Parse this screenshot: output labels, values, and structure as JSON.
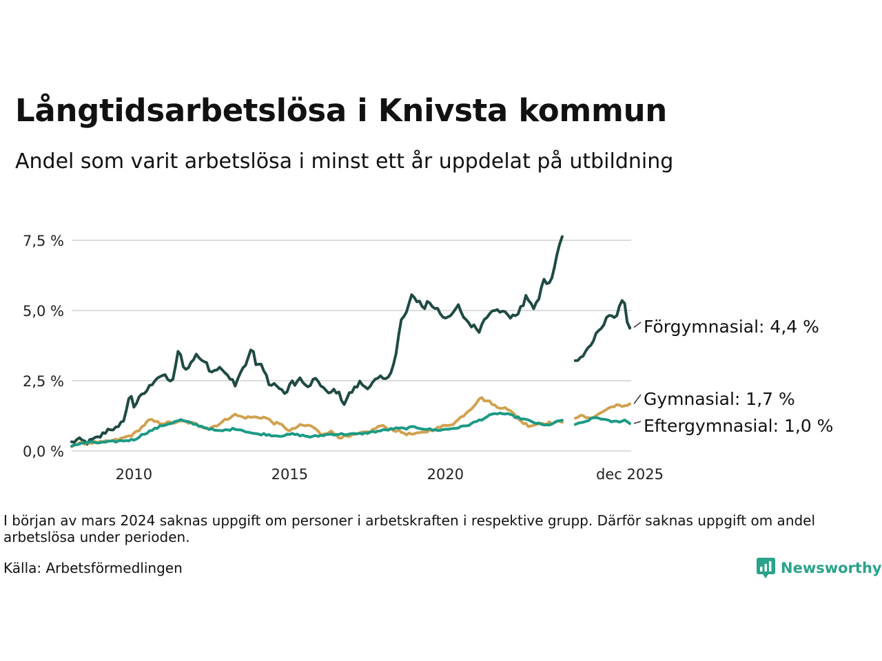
{
  "title": "Långtidsarbetslösa i Knivsta kommun",
  "subtitle": "Andel som varit arbetslösa i minst ett år uppdelat på utbildning",
  "note": "I början av mars 2024 saknas uppgift om personer i arbetskraften i respektive grupp. Därför saknas uppgift om andel arbetslösa under perioden.",
  "source": "Källa: Arbetsförmedlingen",
  "logo_text": "Newsworthy",
  "chart_data": {
    "type": "line",
    "title": "Långtidsarbetslösa i Knivsta kommun",
    "xlabel": "",
    "ylabel": "",
    "xlim": [
      2008.0,
      2025.92
    ],
    "ylim": [
      0,
      8.8
    ],
    "y_ticks": [
      0,
      2.5,
      5.0,
      7.5
    ],
    "y_tick_labels": [
      "0,0 %",
      "2,5 %",
      "5,0 %",
      "7,5 %"
    ],
    "x_ticks": [
      2010,
      2015,
      2020,
      2025.92
    ],
    "x_tick_labels": [
      "2010",
      "2015",
      "2020",
      "dec 2025"
    ],
    "gap": [
      2023.75,
      2024.17
    ],
    "grid": true,
    "series": [
      {
        "name": "Förgymnasial",
        "label": "Förgymnasial: 4,4 %",
        "color": "#1f4a43",
        "points": [
          [
            2008.0,
            0.3
          ],
          [
            2008.2,
            0.4
          ],
          [
            2008.5,
            0.3
          ],
          [
            2008.9,
            0.5
          ],
          [
            2009.2,
            0.8
          ],
          [
            2009.5,
            0.8
          ],
          [
            2009.7,
            1.2
          ],
          [
            2009.85,
            1.9
          ],
          [
            2009.95,
            2.0
          ],
          [
            2010.0,
            1.6
          ],
          [
            2010.2,
            1.9
          ],
          [
            2010.45,
            2.2
          ],
          [
            2010.7,
            2.6
          ],
          [
            2010.9,
            2.7
          ],
          [
            2011.05,
            2.6
          ],
          [
            2011.2,
            2.4
          ],
          [
            2011.3,
            2.8
          ],
          [
            2011.4,
            3.5
          ],
          [
            2011.55,
            3.3
          ],
          [
            2011.6,
            2.9
          ],
          [
            2011.75,
            2.9
          ],
          [
            2011.9,
            3.3
          ],
          [
            2012.05,
            3.5
          ],
          [
            2012.15,
            3.2
          ],
          [
            2012.3,
            3.2
          ],
          [
            2012.45,
            2.8
          ],
          [
            2012.6,
            2.9
          ],
          [
            2012.9,
            2.9
          ],
          [
            2013.1,
            2.6
          ],
          [
            2013.25,
            2.4
          ],
          [
            2013.45,
            2.9
          ],
          [
            2013.65,
            3.2
          ],
          [
            2013.8,
            3.8
          ],
          [
            2013.9,
            3.0
          ],
          [
            2014.05,
            3.1
          ],
          [
            2014.2,
            2.9
          ],
          [
            2014.35,
            2.3
          ],
          [
            2014.55,
            2.4
          ],
          [
            2014.75,
            2.1
          ],
          [
            2014.95,
            2.1
          ],
          [
            2015.05,
            2.5
          ],
          [
            2015.2,
            2.4
          ],
          [
            2015.35,
            2.6
          ],
          [
            2015.55,
            2.2
          ],
          [
            2015.75,
            2.5
          ],
          [
            2015.9,
            2.5
          ],
          [
            2016.05,
            2.3
          ],
          [
            2016.25,
            2.0
          ],
          [
            2016.45,
            2.2
          ],
          [
            2016.6,
            2.0
          ],
          [
            2016.75,
            1.7
          ],
          [
            2016.9,
            2.0
          ],
          [
            2017.15,
            2.3
          ],
          [
            2017.3,
            2.5
          ],
          [
            2017.35,
            2.3
          ],
          [
            2017.55,
            2.3
          ],
          [
            2017.75,
            2.5
          ],
          [
            2017.95,
            2.6
          ],
          [
            2018.1,
            2.5
          ],
          [
            2018.3,
            3.0
          ],
          [
            2018.45,
            3.6
          ],
          [
            2018.55,
            4.6
          ],
          [
            2018.7,
            4.8
          ],
          [
            2018.8,
            5.1
          ],
          [
            2018.9,
            5.5
          ],
          [
            2019.05,
            5.4
          ],
          [
            2019.2,
            5.3
          ],
          [
            2019.35,
            5.0
          ],
          [
            2019.45,
            5.5
          ],
          [
            2019.55,
            5.1
          ],
          [
            2019.75,
            5.1
          ],
          [
            2019.9,
            4.8
          ],
          [
            2020.05,
            4.8
          ],
          [
            2020.15,
            4.7
          ],
          [
            2020.25,
            4.9
          ],
          [
            2020.4,
            5.2
          ],
          [
            2020.5,
            4.9
          ],
          [
            2020.65,
            4.7
          ],
          [
            2020.8,
            4.5
          ],
          [
            2020.95,
            4.4
          ],
          [
            2021.1,
            4.3
          ],
          [
            2021.25,
            4.7
          ],
          [
            2021.45,
            5.0
          ],
          [
            2021.55,
            5.1
          ],
          [
            2021.75,
            4.9
          ],
          [
            2021.95,
            5.0
          ],
          [
            2022.1,
            4.7
          ],
          [
            2022.3,
            4.9
          ],
          [
            2022.5,
            5.2
          ],
          [
            2022.6,
            5.5
          ],
          [
            2022.75,
            5.3
          ],
          [
            2022.85,
            5.0
          ],
          [
            2023.05,
            5.6
          ],
          [
            2023.15,
            6.2
          ],
          [
            2023.25,
            5.9
          ],
          [
            2023.45,
            6.2
          ],
          [
            2023.6,
            7.1
          ],
          [
            2023.75,
            7.6
          ]
        ]
      },
      {
        "name": "Gymnasial",
        "label": "Gymnasial: 1,7 %",
        "color": "#d0a14f",
        "points": [
          [
            2008.0,
            0.2
          ],
          [
            2008.5,
            0.3
          ],
          [
            2009.0,
            0.3
          ],
          [
            2009.5,
            0.4
          ],
          [
            2010.0,
            0.6
          ],
          [
            2010.3,
            0.9
          ],
          [
            2010.5,
            1.1
          ],
          [
            2010.8,
            1.0
          ],
          [
            2011.2,
            1.0
          ],
          [
            2011.6,
            1.05
          ],
          [
            2012.0,
            0.95
          ],
          [
            2012.4,
            0.8
          ],
          [
            2012.8,
            1.0
          ],
          [
            2013.2,
            1.3
          ],
          [
            2013.5,
            1.2
          ],
          [
            2013.8,
            1.2
          ],
          [
            2014.2,
            1.2
          ],
          [
            2014.5,
            1.0
          ],
          [
            2014.8,
            0.9
          ],
          [
            2015.0,
            0.7
          ],
          [
            2015.3,
            0.9
          ],
          [
            2015.7,
            0.9
          ],
          [
            2016.0,
            0.6
          ],
          [
            2016.3,
            0.7
          ],
          [
            2016.6,
            0.5
          ],
          [
            2016.9,
            0.5
          ],
          [
            2017.2,
            0.6
          ],
          [
            2017.6,
            0.7
          ],
          [
            2017.9,
            0.9
          ],
          [
            2018.2,
            0.8
          ],
          [
            2018.5,
            0.7
          ],
          [
            2018.8,
            0.6
          ],
          [
            2019.1,
            0.6
          ],
          [
            2019.4,
            0.7
          ],
          [
            2019.7,
            0.8
          ],
          [
            2020.0,
            0.9
          ],
          [
            2020.3,
            1.0
          ],
          [
            2020.6,
            1.3
          ],
          [
            2020.9,
            1.6
          ],
          [
            2021.1,
            1.9
          ],
          [
            2021.3,
            1.8
          ],
          [
            2021.5,
            1.7
          ],
          [
            2021.7,
            1.5
          ],
          [
            2021.9,
            1.6
          ],
          [
            2022.1,
            1.4
          ],
          [
            2022.3,
            1.2
          ],
          [
            2022.5,
            1.0
          ],
          [
            2022.7,
            0.9
          ],
          [
            2022.9,
            0.95
          ],
          [
            2023.1,
            1.0
          ],
          [
            2023.3,
            1.0
          ],
          [
            2023.5,
            1.0
          ],
          [
            2023.75,
            1.05
          ]
        ]
      },
      {
        "name": "Eftergymnasial",
        "label": "Eftergymnasial: 1,0 %",
        "color": "#1b9a85",
        "points": [
          [
            2008.0,
            0.2
          ],
          [
            2008.5,
            0.3
          ],
          [
            2009.0,
            0.3
          ],
          [
            2009.5,
            0.35
          ],
          [
            2010.0,
            0.4
          ],
          [
            2010.3,
            0.6
          ],
          [
            2010.6,
            0.75
          ],
          [
            2010.9,
            0.9
          ],
          [
            2011.2,
            1.0
          ],
          [
            2011.5,
            1.1
          ],
          [
            2011.8,
            1.0
          ],
          [
            2012.1,
            0.9
          ],
          [
            2012.4,
            0.8
          ],
          [
            2012.7,
            0.7
          ],
          [
            2013.0,
            0.75
          ],
          [
            2013.3,
            0.8
          ],
          [
            2013.6,
            0.7
          ],
          [
            2013.9,
            0.6
          ],
          [
            2014.2,
            0.6
          ],
          [
            2014.5,
            0.55
          ],
          [
            2014.8,
            0.55
          ],
          [
            2015.1,
            0.6
          ],
          [
            2015.4,
            0.55
          ],
          [
            2015.7,
            0.5
          ],
          [
            2016.0,
            0.55
          ],
          [
            2016.3,
            0.6
          ],
          [
            2016.6,
            0.6
          ],
          [
            2016.9,
            0.6
          ],
          [
            2017.2,
            0.6
          ],
          [
            2017.5,
            0.65
          ],
          [
            2017.8,
            0.7
          ],
          [
            2018.1,
            0.75
          ],
          [
            2018.4,
            0.8
          ],
          [
            2018.7,
            0.8
          ],
          [
            2019.0,
            0.85
          ],
          [
            2019.3,
            0.8
          ],
          [
            2019.6,
            0.75
          ],
          [
            2019.9,
            0.75
          ],
          [
            2020.2,
            0.8
          ],
          [
            2020.5,
            0.85
          ],
          [
            2020.8,
            0.95
          ],
          [
            2021.1,
            1.1
          ],
          [
            2021.4,
            1.25
          ],
          [
            2021.7,
            1.35
          ],
          [
            2022.0,
            1.3
          ],
          [
            2022.3,
            1.2
          ],
          [
            2022.6,
            1.1
          ],
          [
            2022.9,
            1.0
          ],
          [
            2023.2,
            0.9
          ],
          [
            2023.5,
            1.0
          ],
          [
            2023.75,
            1.1
          ]
        ]
      }
    ]
  }
}
